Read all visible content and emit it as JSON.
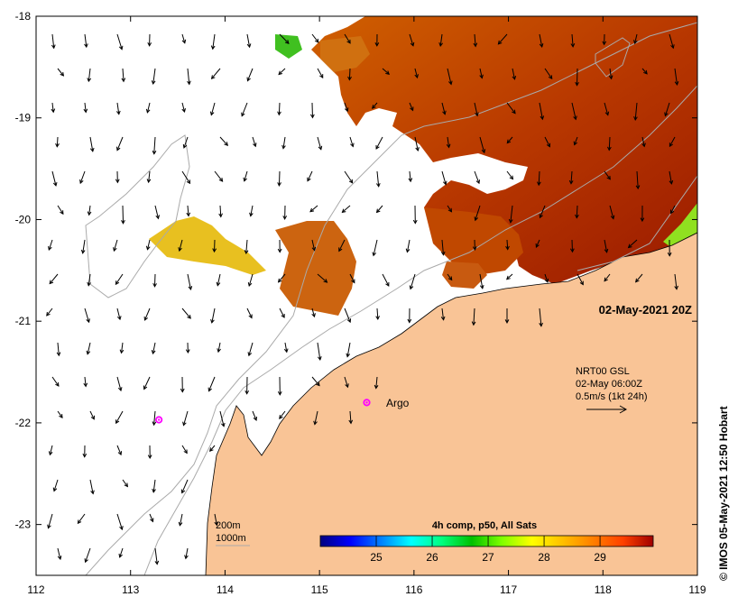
{
  "map": {
    "date_label": "02-May-2021 20Z",
    "credit": "© IMOS 05-May-2021 12:50 Hobart",
    "x_ticks": [
      "112",
      "113",
      "114",
      "115",
      "116",
      "117",
      "118",
      "119"
    ],
    "y_ticks": [
      "-18",
      "-19",
      "-20",
      "-21",
      "-22",
      "-23"
    ],
    "lon_range": [
      112,
      119
    ],
    "lat_range": [
      -23.5,
      -18
    ]
  },
  "argo": {
    "label": "Argo",
    "floats": [
      {
        "lon": 115.5,
        "lat": -21.8
      },
      {
        "lon": 113.3,
        "lat": -21.97
      }
    ],
    "marker_color": "#ff00ff"
  },
  "current_legend": {
    "line1": "NRT00 GSL",
    "line2": "02-May 06:00Z",
    "line3": "0.5m/s (1kt 24h)"
  },
  "bathymetry_legend": {
    "contour_200": "200m",
    "contour_1000": "1000m"
  },
  "colorbar": {
    "title": "4h comp, p50, All Sats",
    "ticks": [
      "25",
      "26",
      "27",
      "28",
      "29"
    ],
    "range": [
      24,
      29.95
    ],
    "colors": [
      "#000080",
      "#0000ff",
      "#0080ff",
      "#00ffff",
      "#00ff80",
      "#00c000",
      "#80ff00",
      "#ffff00",
      "#ffc000",
      "#ff8000",
      "#ff4000",
      "#a00000"
    ]
  },
  "colors": {
    "land": "#f9c496",
    "coast": "#000000",
    "contour": "#aaaaaa"
  }
}
